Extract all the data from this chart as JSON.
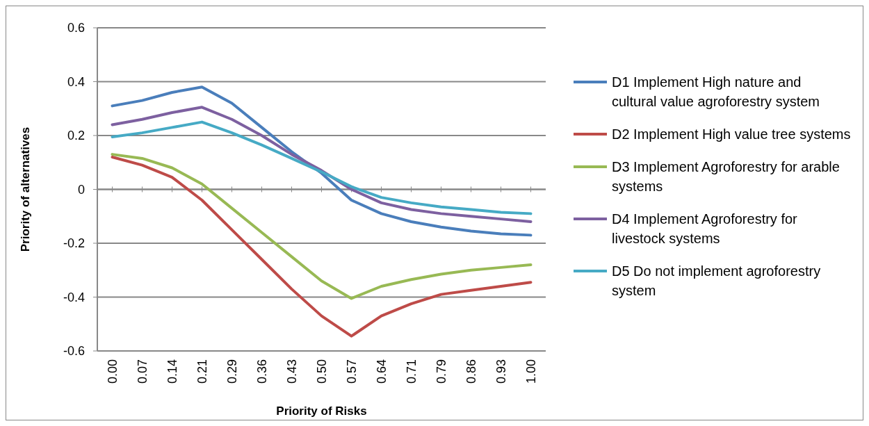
{
  "chart_data": {
    "type": "line",
    "xlabel": "Priority of Risks",
    "ylabel": "Priority of alternatives",
    "categories": [
      "0.00",
      "0.07",
      "0.14",
      "0.21",
      "0.29",
      "0.36",
      "0.43",
      "0.50",
      "0.57",
      "0.64",
      "0.71",
      "0.79",
      "0.86",
      "0.93",
      "1.00"
    ],
    "ylim": [
      -0.6,
      0.6
    ],
    "yticks": [
      -0.6,
      -0.4,
      -0.2,
      0,
      0.2,
      0.4,
      0.6
    ],
    "grid": "y",
    "legend": "right",
    "marker": "none",
    "series": [
      {
        "name": "D1 Implement High nature and cultural value agroforestry system",
        "color": "#4a7ebb",
        "values": [
          0.31,
          0.33,
          0.36,
          0.38,
          0.32,
          0.23,
          0.14,
          0.06,
          -0.04,
          -0.09,
          -0.12,
          -0.14,
          -0.155,
          -0.165,
          -0.17
        ]
      },
      {
        "name": "D2 Implement High value tree systems",
        "color": "#be4b48",
        "values": [
          0.12,
          0.09,
          0.045,
          -0.04,
          -0.15,
          -0.26,
          -0.37,
          -0.47,
          -0.545,
          -0.47,
          -0.425,
          -0.39,
          -0.375,
          -0.36,
          -0.345
        ]
      },
      {
        "name": "D3 Implement Agroforestry for arable systems",
        "color": "#98b954",
        "values": [
          0.13,
          0.115,
          0.08,
          0.02,
          -0.07,
          -0.16,
          -0.25,
          -0.34,
          -0.405,
          -0.36,
          -0.335,
          -0.315,
          -0.3,
          -0.29,
          -0.28
        ]
      },
      {
        "name": "D4 Implement Agroforestry for livestock systems",
        "color": "#7d60a0",
        "values": [
          0.24,
          0.26,
          0.285,
          0.305,
          0.26,
          0.2,
          0.13,
          0.07,
          0.0,
          -0.05,
          -0.075,
          -0.09,
          -0.1,
          -0.11,
          -0.12
        ]
      },
      {
        "name": "D5 Do not implement agroforestry system",
        "color": "#46aac5",
        "values": [
          0.195,
          0.21,
          0.23,
          0.25,
          0.21,
          0.165,
          0.115,
          0.065,
          0.01,
          -0.03,
          -0.05,
          -0.065,
          -0.075,
          -0.085,
          -0.09
        ]
      }
    ]
  }
}
